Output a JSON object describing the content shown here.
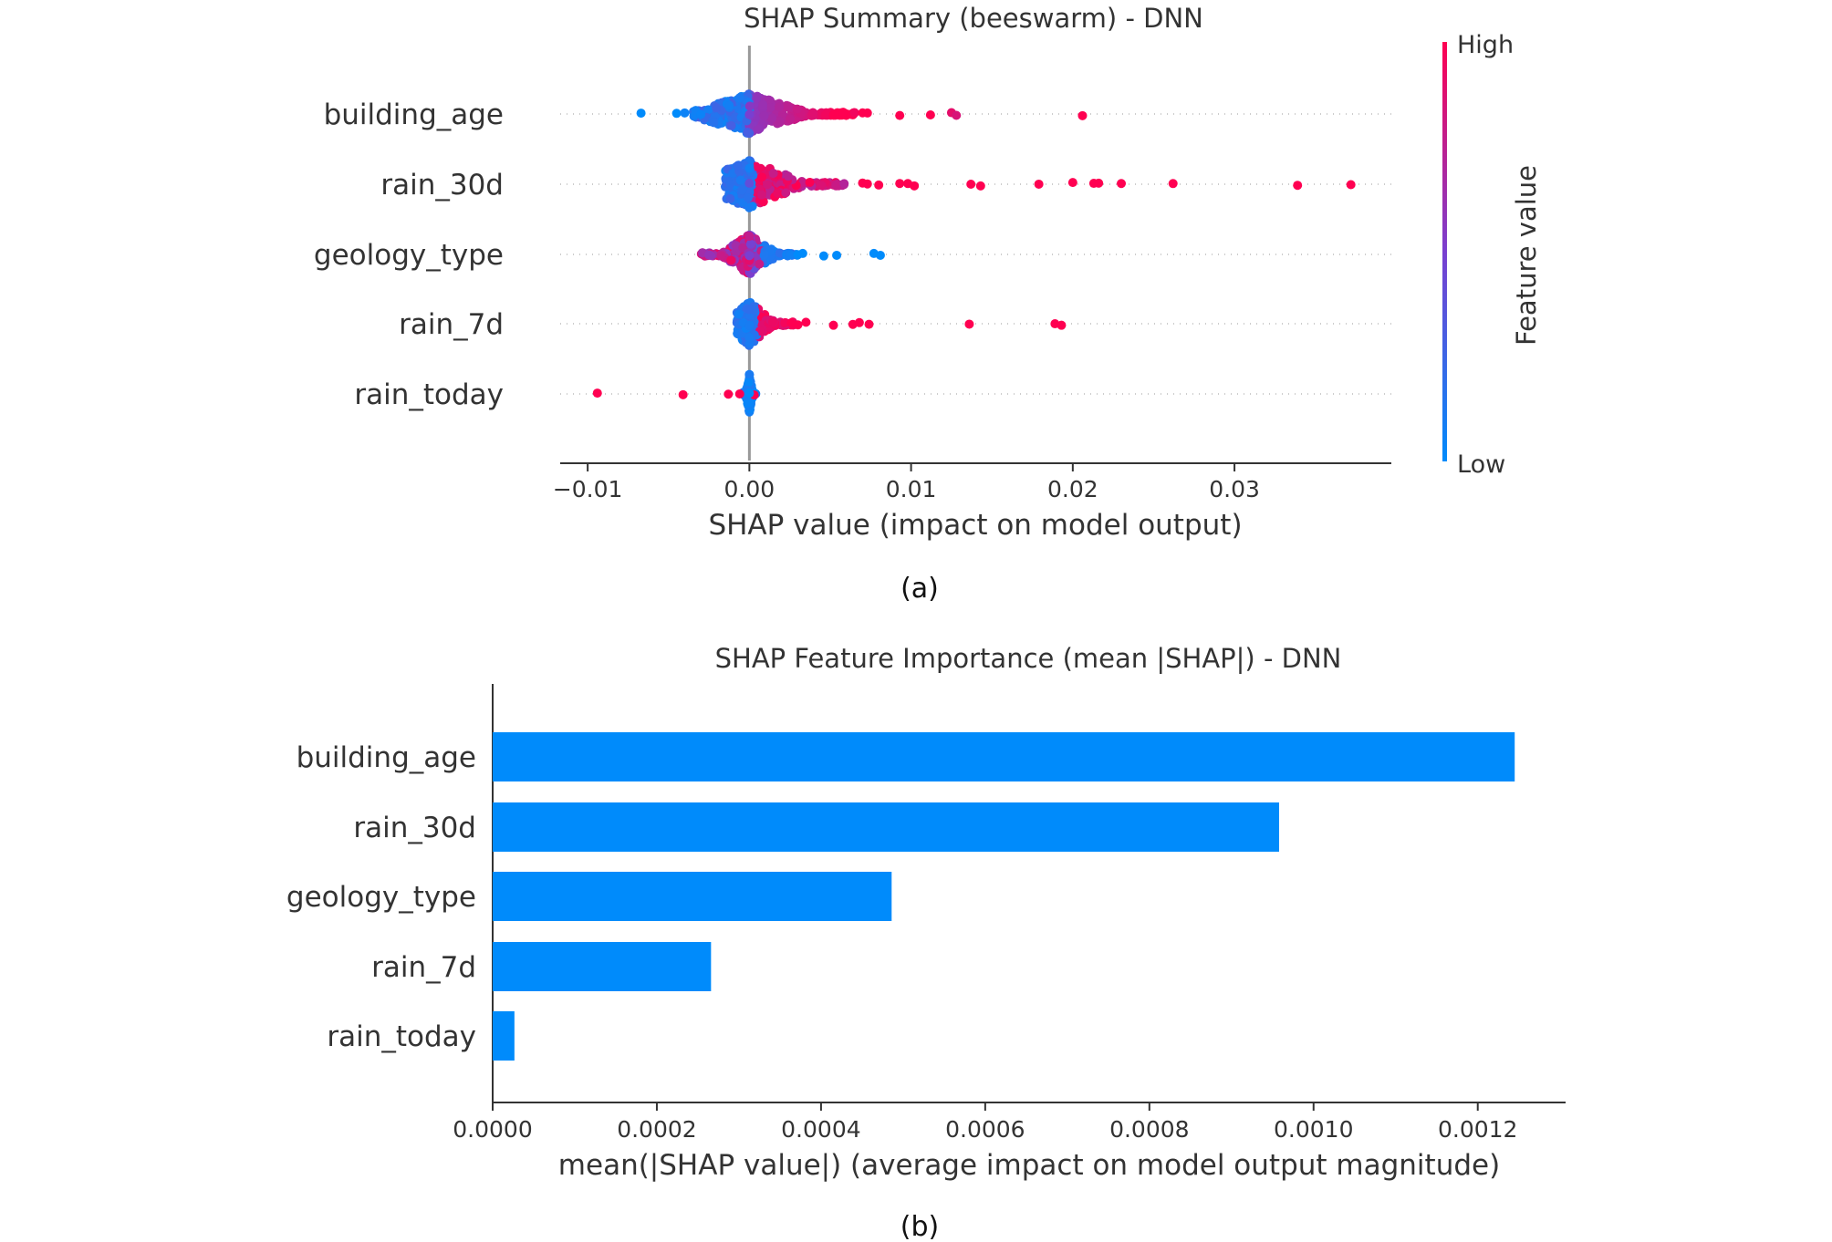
{
  "colors": {
    "low": "#008bfb",
    "high": "#ff0051",
    "bar": "#008bfb",
    "axis": "#333333",
    "zero_line": "#999999",
    "grid_dots": "#cccccc"
  },
  "chart_data": [
    {
      "type": "scatter",
      "title": "SHAP Summary (beeswarm) - DNN",
      "xlabel": "SHAP value (impact on model output)",
      "xlim": [
        -0.0117,
        0.0397
      ],
      "xticks": [
        -0.01,
        0.0,
        0.01,
        0.02,
        0.03
      ],
      "xtick_labels": [
        "−0.01",
        "0.00",
        "0.01",
        "0.02",
        "0.03"
      ],
      "colorbar": {
        "label": "Feature value",
        "high": "High",
        "low": "Low"
      },
      "caption": "(a)",
      "features": [
        {
          "name": "building_age",
          "highlights": [
            {
              "x": -0.0067,
              "v": 0.0
            },
            {
              "x": -0.0045,
              "v": 0.0
            },
            {
              "x": -0.004,
              "v": 0.05
            },
            {
              "x": -0.003,
              "v": 0.05
            },
            {
              "x": 0.0,
              "v": 0.5
            },
            {
              "x": 0.0047,
              "v": 0.95
            },
            {
              "x": 0.0052,
              "v": 1.0
            },
            {
              "x": 0.0058,
              "v": 1.0
            },
            {
              "x": 0.0065,
              "v": 0.95
            },
            {
              "x": 0.007,
              "v": 1.0
            },
            {
              "x": 0.0073,
              "v": 1.0
            },
            {
              "x": 0.0093,
              "v": 1.0
            },
            {
              "x": 0.0112,
              "v": 1.0
            },
            {
              "x": 0.0125,
              "v": 0.9
            },
            {
              "x": 0.0128,
              "v": 0.85
            },
            {
              "x": 0.0206,
              "v": 1.0
            }
          ]
        },
        {
          "name": "rain_30d",
          "highlights": [
            {
              "x": 0.0,
              "v": 0.4
            },
            {
              "x": 0.007,
              "v": 1.0
            },
            {
              "x": 0.0073,
              "v": 1.0
            },
            {
              "x": 0.008,
              "v": 1.0
            },
            {
              "x": 0.0093,
              "v": 1.0
            },
            {
              "x": 0.0098,
              "v": 1.0
            },
            {
              "x": 0.0102,
              "v": 1.0
            },
            {
              "x": 0.0137,
              "v": 1.0
            },
            {
              "x": 0.0143,
              "v": 1.0
            },
            {
              "x": 0.0179,
              "v": 1.0
            },
            {
              "x": 0.02,
              "v": 1.0
            },
            {
              "x": 0.0213,
              "v": 1.0
            },
            {
              "x": 0.0216,
              "v": 1.0
            },
            {
              "x": 0.023,
              "v": 1.0
            },
            {
              "x": 0.0262,
              "v": 1.0
            },
            {
              "x": 0.0339,
              "v": 1.0
            },
            {
              "x": 0.0372,
              "v": 1.0
            }
          ]
        },
        {
          "name": "geology_type",
          "highlights": [
            {
              "x": -0.0029,
              "v": 0.65
            },
            {
              "x": -0.0025,
              "v": 0.6
            },
            {
              "x": 0.0,
              "v": 0.5
            },
            {
              "x": 0.003,
              "v": 0.0
            },
            {
              "x": 0.0033,
              "v": 0.0
            },
            {
              "x": 0.0046,
              "v": 0.0
            },
            {
              "x": 0.0054,
              "v": 0.0
            },
            {
              "x": 0.0077,
              "v": 0.0
            },
            {
              "x": 0.0081,
              "v": 0.0
            }
          ]
        },
        {
          "name": "rain_7d",
          "highlights": [
            {
              "x": 0.0,
              "v": 0.1
            },
            {
              "x": 0.0026,
              "v": 1.0
            },
            {
              "x": 0.003,
              "v": 1.0
            },
            {
              "x": 0.0035,
              "v": 1.0
            },
            {
              "x": 0.0052,
              "v": 1.0
            },
            {
              "x": 0.0064,
              "v": 1.0
            },
            {
              "x": 0.0068,
              "v": 1.0
            },
            {
              "x": 0.0074,
              "v": 1.0
            },
            {
              "x": 0.0136,
              "v": 1.0
            },
            {
              "x": 0.0189,
              "v": 1.0
            },
            {
              "x": 0.0193,
              "v": 1.0
            }
          ]
        },
        {
          "name": "rain_today",
          "highlights": [
            {
              "x": -0.0094,
              "v": 1.0
            },
            {
              "x": -0.0041,
              "v": 1.0
            },
            {
              "x": -0.0013,
              "v": 1.0
            },
            {
              "x": -0.0006,
              "v": 1.0
            },
            {
              "x": 0.0003,
              "v": 1.0
            },
            {
              "x": 0.0,
              "v": 0.0
            }
          ]
        }
      ]
    },
    {
      "type": "bar",
      "orientation": "horizontal",
      "title": "SHAP Feature Importance (mean |SHAP|) - DNN",
      "xlabel": "mean(|SHAP value|) (average impact on model output magnitude)",
      "categories": [
        "building_age",
        "rain_30d",
        "geology_type",
        "rain_7d",
        "rain_today"
      ],
      "values": [
        0.001245,
        0.000958,
        0.000486,
        0.000266,
        2.65e-05
      ],
      "xlim": [
        0.0,
        0.001307
      ],
      "xticks": [
        0.0,
        0.0002,
        0.0004,
        0.0006,
        0.0008,
        0.001,
        0.0012
      ],
      "xtick_labels": [
        "0.0000",
        "0.0002",
        "0.0004",
        "0.0006",
        "0.0008",
        "0.0010",
        "0.0012"
      ],
      "caption": "(b)"
    }
  ]
}
